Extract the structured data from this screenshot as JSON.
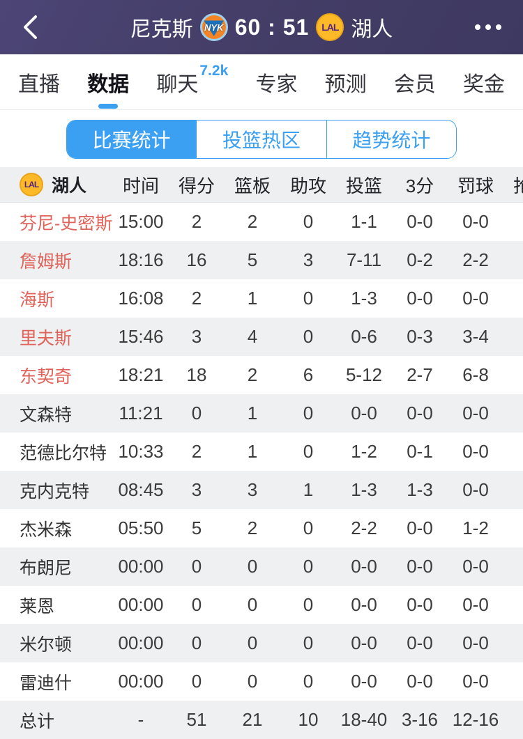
{
  "topbar": {
    "away": {
      "name": "尼克斯",
      "abbr": "NYK"
    },
    "home": {
      "name": "湖人",
      "abbr": "LAL"
    },
    "score": "60 : 51"
  },
  "tabs": [
    {
      "label": "直播",
      "active": false
    },
    {
      "label": "数据",
      "active": true
    },
    {
      "label": "聊天",
      "active": false,
      "badge": "7.2k"
    },
    {
      "label": "专家",
      "active": false
    },
    {
      "label": "预测",
      "active": false
    },
    {
      "label": "会员",
      "active": false
    },
    {
      "label": "奖金",
      "active": false
    }
  ],
  "segments": [
    {
      "label": "比赛统计",
      "active": true
    },
    {
      "label": "投篮热区",
      "active": false
    },
    {
      "label": "趋势统计",
      "active": false
    }
  ],
  "table": {
    "team": {
      "name": "湖人",
      "abbr": "LAL"
    },
    "columns": [
      "时间",
      "得分",
      "篮板",
      "助攻",
      "投篮",
      "3分",
      "罚球",
      "抢断"
    ],
    "rows": [
      {
        "name": "芬尼-史密斯",
        "starter": true,
        "total": false,
        "time": "15:00",
        "pts": "2",
        "reb": "2",
        "ast": "0",
        "fg": "1-1",
        "tp3": "0-0",
        "ft": "0-0"
      },
      {
        "name": "詹姆斯",
        "starter": true,
        "total": false,
        "time": "18:16",
        "pts": "16",
        "reb": "5",
        "ast": "3",
        "fg": "7-11",
        "tp3": "0-2",
        "ft": "2-2"
      },
      {
        "name": "海斯",
        "starter": true,
        "total": false,
        "time": "16:08",
        "pts": "2",
        "reb": "1",
        "ast": "0",
        "fg": "1-3",
        "tp3": "0-0",
        "ft": "0-0"
      },
      {
        "name": "里夫斯",
        "starter": true,
        "total": false,
        "time": "15:46",
        "pts": "3",
        "reb": "4",
        "ast": "0",
        "fg": "0-6",
        "tp3": "0-3",
        "ft": "3-4"
      },
      {
        "name": "东契奇",
        "starter": true,
        "total": false,
        "time": "18:21",
        "pts": "18",
        "reb": "2",
        "ast": "6",
        "fg": "5-12",
        "tp3": "2-7",
        "ft": "6-8"
      },
      {
        "name": "文森特",
        "starter": false,
        "total": false,
        "time": "11:21",
        "pts": "0",
        "reb": "1",
        "ast": "0",
        "fg": "0-0",
        "tp3": "0-0",
        "ft": "0-0"
      },
      {
        "name": "范德比尔特",
        "starter": false,
        "total": false,
        "time": "10:33",
        "pts": "2",
        "reb": "1",
        "ast": "0",
        "fg": "1-2",
        "tp3": "0-1",
        "ft": "0-0"
      },
      {
        "name": "克内克特",
        "starter": false,
        "total": false,
        "time": "08:45",
        "pts": "3",
        "reb": "3",
        "ast": "1",
        "fg": "1-3",
        "tp3": "1-3",
        "ft": "0-0"
      },
      {
        "name": "杰米森",
        "starter": false,
        "total": false,
        "time": "05:50",
        "pts": "5",
        "reb": "2",
        "ast": "0",
        "fg": "2-2",
        "tp3": "0-0",
        "ft": "1-2"
      },
      {
        "name": "布朗尼",
        "starter": false,
        "total": false,
        "time": "00:00",
        "pts": "0",
        "reb": "0",
        "ast": "0",
        "fg": "0-0",
        "tp3": "0-0",
        "ft": "0-0"
      },
      {
        "name": "莱恩",
        "starter": false,
        "total": false,
        "time": "00:00",
        "pts": "0",
        "reb": "0",
        "ast": "0",
        "fg": "0-0",
        "tp3": "0-0",
        "ft": "0-0"
      },
      {
        "name": "米尔顿",
        "starter": false,
        "total": false,
        "time": "00:00",
        "pts": "0",
        "reb": "0",
        "ast": "0",
        "fg": "0-0",
        "tp3": "0-0",
        "ft": "0-0"
      },
      {
        "name": "雷迪什",
        "starter": false,
        "total": false,
        "time": "00:00",
        "pts": "0",
        "reb": "0",
        "ast": "0",
        "fg": "0-0",
        "tp3": "0-0",
        "ft": "0-0"
      },
      {
        "name": "总计",
        "starter": false,
        "total": true,
        "time": "-",
        "pts": "51",
        "reb": "21",
        "ast": "10",
        "fg": "18-40",
        "tp3": "3-16",
        "ft": "12-16"
      }
    ]
  },
  "colors": {
    "accent_blue": "#3b9ff2",
    "starter_red": "#e0635a",
    "topbar_purple": "#443e68",
    "row_alt_gray": "#eff0f1"
  }
}
